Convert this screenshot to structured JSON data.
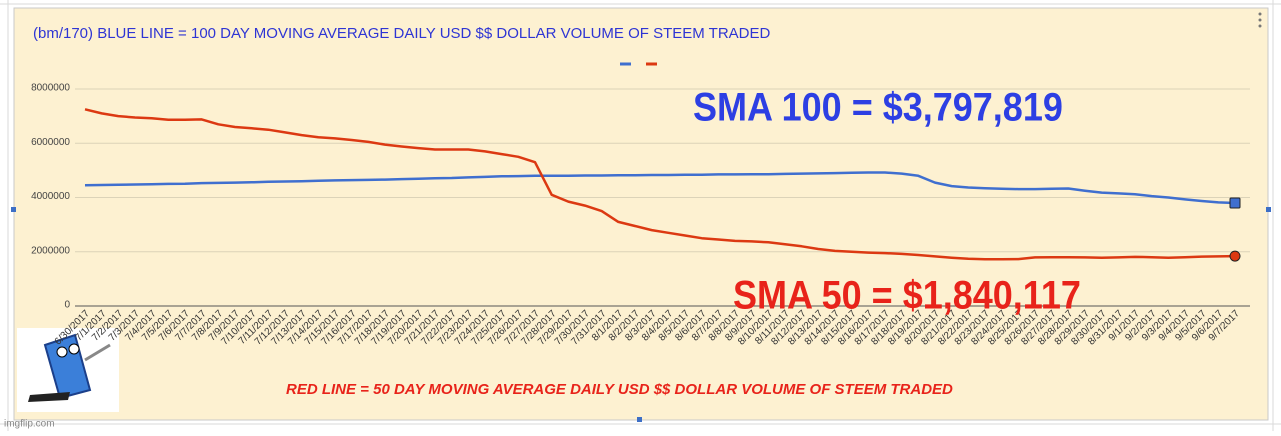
{
  "chart_data": {
    "type": "line",
    "title": "(bm/170) BLUE LINE = 100 DAY MOVING AVERAGE DAILY USD $$  DOLLAR VOLUME OF STEEM TRADED",
    "annotations": [
      "SMA  100 = $3,797,819",
      "SMA  50 = $1,840,117",
      "RED LINE = 50 DAY MOVING AVERAGE DAILY USD $$  DOLLAR VOLUME OF STEEM TRADED"
    ],
    "watermark": "imgflip.com",
    "categories": [
      "6/30/2017",
      "7/1/2017",
      "7/2/2017",
      "7/3/2017",
      "7/4/2017",
      "7/5/2017",
      "7/6/2017",
      "7/7/2017",
      "7/8/2017",
      "7/9/2017",
      "7/10/2017",
      "7/11/2017",
      "7/12/2017",
      "7/13/2017",
      "7/14/2017",
      "7/15/2017",
      "7/16/2017",
      "7/17/2017",
      "7/18/2017",
      "7/19/2017",
      "7/20/2017",
      "7/21/2017",
      "7/22/2017",
      "7/23/2017",
      "7/24/2017",
      "7/25/2017",
      "7/26/2017",
      "7/27/2017",
      "7/28/2017",
      "7/29/2017",
      "7/30/2017",
      "7/31/2017",
      "8/1/2017",
      "8/2/2017",
      "8/3/2017",
      "8/4/2017",
      "8/5/2017",
      "8/6/2017",
      "8/7/2017",
      "8/8/2017",
      "8/9/2017",
      "8/10/2017",
      "8/11/2017",
      "8/12/2017",
      "8/13/2017",
      "8/14/2017",
      "8/15/2017",
      "8/16/2017",
      "8/17/2017",
      "8/18/2017",
      "8/19/2017",
      "8/20/2017",
      "8/21/2017",
      "8/22/2017",
      "8/23/2017",
      "8/24/2017",
      "8/25/2017",
      "8/26/2017",
      "8/27/2017",
      "8/28/2017",
      "8/29/2017",
      "8/30/2017",
      "8/31/2017",
      "9/1/2017",
      "9/2/2017",
      "9/3/2017",
      "9/4/2017",
      "9/5/2017",
      "9/6/2017",
      "9/7/2017"
    ],
    "series": [
      {
        "color": "#3f6fcf",
        "values": [
          4450000,
          4460000,
          4470000,
          4480000,
          4490000,
          4500000,
          4510000,
          4530000,
          4540000,
          4550000,
          4560000,
          4580000,
          4590000,
          4600000,
          4620000,
          4630000,
          4640000,
          4650000,
          4660000,
          4680000,
          4690000,
          4710000,
          4720000,
          4740000,
          4760000,
          4780000,
          4790000,
          4800000,
          4800000,
          4800000,
          4810000,
          4810000,
          4820000,
          4820000,
          4830000,
          4830000,
          4840000,
          4840000,
          4850000,
          4850000,
          4860000,
          4860000,
          4870000,
          4880000,
          4890000,
          4900000,
          4910000,
          4920000,
          4920000,
          4880000,
          4800000,
          4550000,
          4420000,
          4370000,
          4340000,
          4320000,
          4310000,
          4310000,
          4320000,
          4330000,
          4250000,
          4180000,
          4150000,
          4120000,
          4050000,
          4000000,
          3930000,
          3870000,
          3820000,
          3797819
        ]
      },
      {
        "color": "#dc3912",
        "values": [
          7250000,
          7100000,
          7000000,
          6950000,
          6920000,
          6870000,
          6870000,
          6880000,
          6700000,
          6600000,
          6550000,
          6500000,
          6400000,
          6300000,
          6220000,
          6180000,
          6120000,
          6050000,
          5950000,
          5880000,
          5820000,
          5770000,
          5770000,
          5770000,
          5700000,
          5600000,
          5500000,
          5300000,
          4100000,
          3850000,
          3700000,
          3500000,
          3100000,
          2950000,
          2800000,
          2700000,
          2600000,
          2500000,
          2450000,
          2400000,
          2380000,
          2350000,
          2280000,
          2200000,
          2100000,
          2030000,
          2000000,
          1970000,
          1950000,
          1920000,
          1880000,
          1830000,
          1780000,
          1740000,
          1720000,
          1720000,
          1730000,
          1790000,
          1800000,
          1800000,
          1790000,
          1780000,
          1790000,
          1810000,
          1800000,
          1780000,
          1800000,
          1820000,
          1830000,
          1840117
        ]
      }
    ],
    "ylim": [
      0,
      8000000
    ],
    "yticks": [
      0,
      2000000,
      4000000,
      6000000,
      8000000
    ],
    "grid": true
  }
}
